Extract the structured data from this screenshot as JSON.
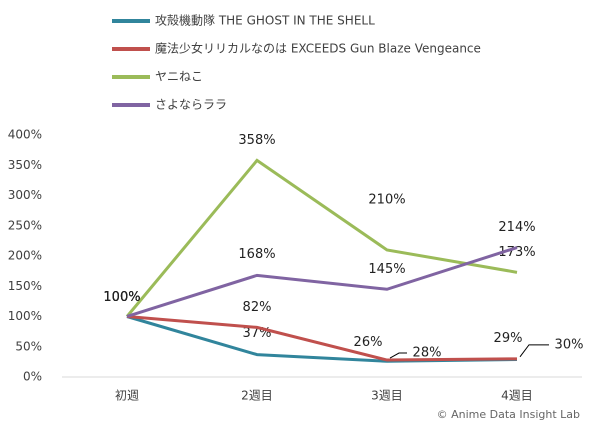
{
  "chart_data": {
    "type": "line",
    "categories": [
      "初週",
      "2週目",
      "3週目",
      "4週目"
    ],
    "series": [
      {
        "name": "攻殻機動隊 THE GHOST IN THE SHELL",
        "color": "#31859c",
        "values": [
          100,
          37,
          26,
          29
        ],
        "value_labels": [
          "100%",
          "37%",
          "26%",
          "29%"
        ]
      },
      {
        "name": "魔法少女リリカルなのは EXCEEDS Gun Blaze Vengeance",
        "color": "#c0504d",
        "values": [
          100,
          82,
          28,
          30
        ],
        "value_labels": [
          "100%",
          "82%",
          "28%",
          "30%"
        ]
      },
      {
        "name": "ヤニねこ",
        "color": "#9bbb59",
        "values": [
          100,
          358,
          210,
          173
        ],
        "value_labels": [
          "100%",
          "358%",
          "210%",
          "173%"
        ]
      },
      {
        "name": "さよならララ",
        "color": "#8064a2",
        "values": [
          100,
          168,
          145,
          214
        ],
        "value_labels": [
          "100%",
          "168%",
          "145%",
          "214%"
        ]
      }
    ],
    "ylim": [
      0,
      400
    ],
    "yticks": [
      {
        "value": 0,
        "label": "0%"
      },
      {
        "value": 50,
        "label": "50%"
      },
      {
        "value": 100,
        "label": "100%"
      },
      {
        "value": 150,
        "label": "150%"
      },
      {
        "value": 200,
        "label": "200%"
      },
      {
        "value": 250,
        "label": "250%"
      },
      {
        "value": 300,
        "label": "300%"
      },
      {
        "value": 350,
        "label": "350%"
      },
      {
        "value": 400,
        "label": "400%"
      }
    ],
    "grid": false,
    "credit": "© Anime Data Insight Lab"
  }
}
